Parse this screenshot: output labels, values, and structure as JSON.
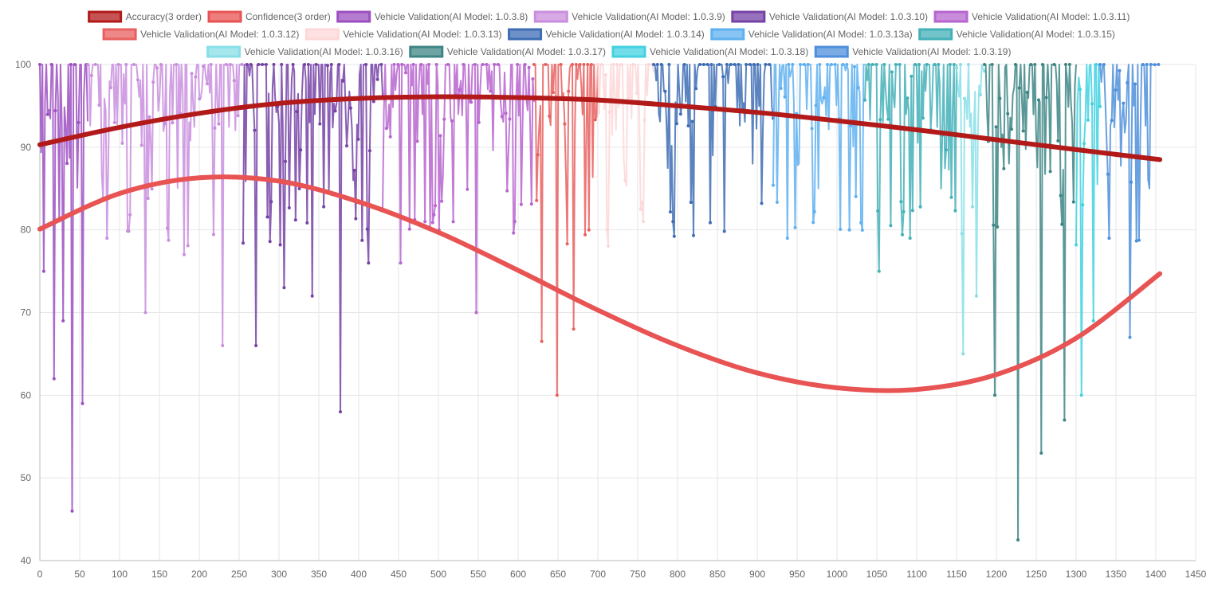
{
  "chart_data": {
    "type": "line",
    "title": "",
    "xlabel": "",
    "ylabel": "",
    "xlim": [
      0,
      1450
    ],
    "ylim": [
      40,
      100
    ],
    "x_ticks": [
      0,
      50,
      100,
      150,
      200,
      250,
      300,
      350,
      400,
      450,
      500,
      550,
      600,
      650,
      700,
      750,
      800,
      850,
      900,
      950,
      1000,
      1050,
      1100,
      1150,
      1200,
      1250,
      1300,
      1350,
      1400,
      1450
    ],
    "y_ticks": [
      40,
      50,
      60,
      70,
      80,
      90,
      100
    ],
    "grid": true,
    "legend_position": "top",
    "trend_series": [
      {
        "name": "Accuracy(3 order)",
        "color": "#b21a1a",
        "x": [
          0,
          100,
          200,
          300,
          400,
          500,
          600,
          700,
          800,
          900,
          1000,
          1100,
          1200,
          1300,
          1405
        ],
        "y": [
          90.3,
          92.4,
          94.1,
          95.3,
          95.9,
          96.1,
          96.0,
          95.7,
          95.0,
          94.2,
          93.2,
          92.1,
          90.9,
          89.7,
          88.5
        ]
      },
      {
        "name": "Confidence(3 order)",
        "color": "#e85353",
        "x": [
          0,
          100,
          200,
          300,
          400,
          500,
          600,
          700,
          800,
          900,
          1000,
          1100,
          1200,
          1300,
          1405
        ],
        "y": [
          80.1,
          84.4,
          86.3,
          85.9,
          83.4,
          79.7,
          75.1,
          70.3,
          66.0,
          62.7,
          60.9,
          60.7,
          62.5,
          66.9,
          74.7
        ]
      }
    ],
    "validation_series": [
      {
        "name": "Vehicle Validation(AI Model: 1.0.3.8)",
        "color": "#9c4fc1",
        "x_range": [
          0,
          60
        ],
        "min_values": [
          75,
          62,
          69,
          46,
          59
        ]
      },
      {
        "name": "Vehicle Validation(AI Model: 1.0.3.9)",
        "color": "#c98ede",
        "x_range": [
          60,
          255
        ],
        "min_values": [
          79,
          70,
          77,
          66
        ]
      },
      {
        "name": "Vehicle Validation(AI Model: 1.0.3.10)",
        "color": "#7542a6",
        "x_range": [
          255,
          430
        ],
        "min_values": [
          66,
          73,
          72,
          58,
          76
        ]
      },
      {
        "name": "Vehicle Validation(AI Model: 1.0.3.11)",
        "color": "#b765cf",
        "x_range": [
          430,
          620
        ],
        "min_values": [
          76,
          80,
          70,
          81
        ]
      },
      {
        "name": "Vehicle Validation(AI Model: 1.0.3.12)",
        "color": "#e8605f",
        "x_range": [
          620,
          700
        ],
        "min_values": [
          66.5,
          60,
          68,
          80
        ]
      },
      {
        "name": "Vehicle Validation(AI Model: 1.0.3.13)",
        "color": "#fdd7d8",
        "x_range": [
          700,
          770
        ],
        "min_values": [
          80,
          86,
          81
        ]
      },
      {
        "name": "Vehicle Validation(AI Model: 1.0.3.14)",
        "color": "#3e6db5",
        "x_range": [
          770,
          920
        ],
        "min_values": [
          81,
          89,
          88
        ]
      },
      {
        "name": "Vehicle Validation(AI Model: 1.0.3.13a)",
        "color": "#5fb0f0",
        "x_range": [
          920,
          1035
        ],
        "min_values": [
          79,
          85,
          80
        ]
      },
      {
        "name": "Vehicle Validation(AI Model: 1.0.3.15)",
        "color": "#44b0b8",
        "x_range": [
          1035,
          1150
        ],
        "min_values": [
          75,
          79,
          85
        ]
      },
      {
        "name": "Vehicle Validation(AI Model: 1.0.3.16)",
        "color": "#88dfe8",
        "x_range": [
          1150,
          1185
        ],
        "min_values": [
          65,
          72
        ]
      },
      {
        "name": "Vehicle Validation(AI Model: 1.0.3.17)",
        "color": "#3d8585",
        "x_range": [
          1185,
          1300
        ],
        "min_values": [
          60,
          42.5,
          53,
          57
        ]
      },
      {
        "name": "Vehicle Validation(AI Model: 1.0.3.18)",
        "color": "#42d1e0",
        "x_range": [
          1300,
          1330
        ],
        "min_values": [
          60,
          69
        ]
      },
      {
        "name": "Vehicle Validation(AI Model: 1.0.3.19)",
        "color": "#4f8fdb",
        "x_range": [
          1330,
          1405
        ],
        "min_values": [
          79,
          67,
          85
        ]
      }
    ]
  }
}
